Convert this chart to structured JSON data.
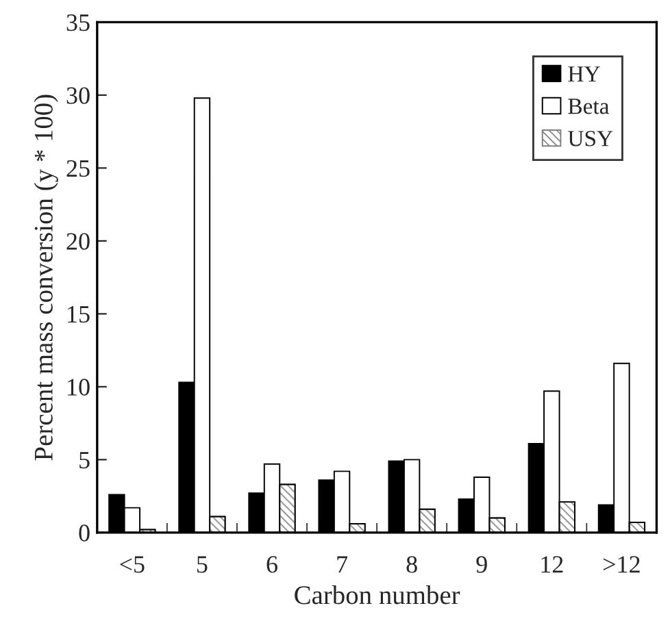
{
  "chart_data": {
    "type": "bar",
    "xlabel": "Carbon number",
    "ylabel": "Percent mass conversion (y * 100)",
    "categories": [
      "<5",
      "5",
      "6",
      "7",
      "8",
      "9",
      "12",
      ">12"
    ],
    "series": [
      {
        "name": "HY",
        "color": "#000000",
        "values": [
          2.6,
          10.3,
          2.7,
          3.6,
          4.9,
          2.3,
          6.1,
          1.9
        ]
      },
      {
        "name": "Beta",
        "color": "#ffffff",
        "values": [
          1.7,
          29.8,
          4.7,
          4.2,
          5.0,
          3.8,
          9.7,
          11.6
        ]
      },
      {
        "name": "USY",
        "color": "#808080",
        "values": [
          0.2,
          1.1,
          3.3,
          0.6,
          1.6,
          1.0,
          2.1,
          0.7
        ]
      }
    ],
    "ylim": [
      0,
      35
    ],
    "yticks": [
      0,
      5,
      10,
      15,
      20,
      25,
      30,
      35
    ],
    "grid": false,
    "legend": "top right"
  }
}
